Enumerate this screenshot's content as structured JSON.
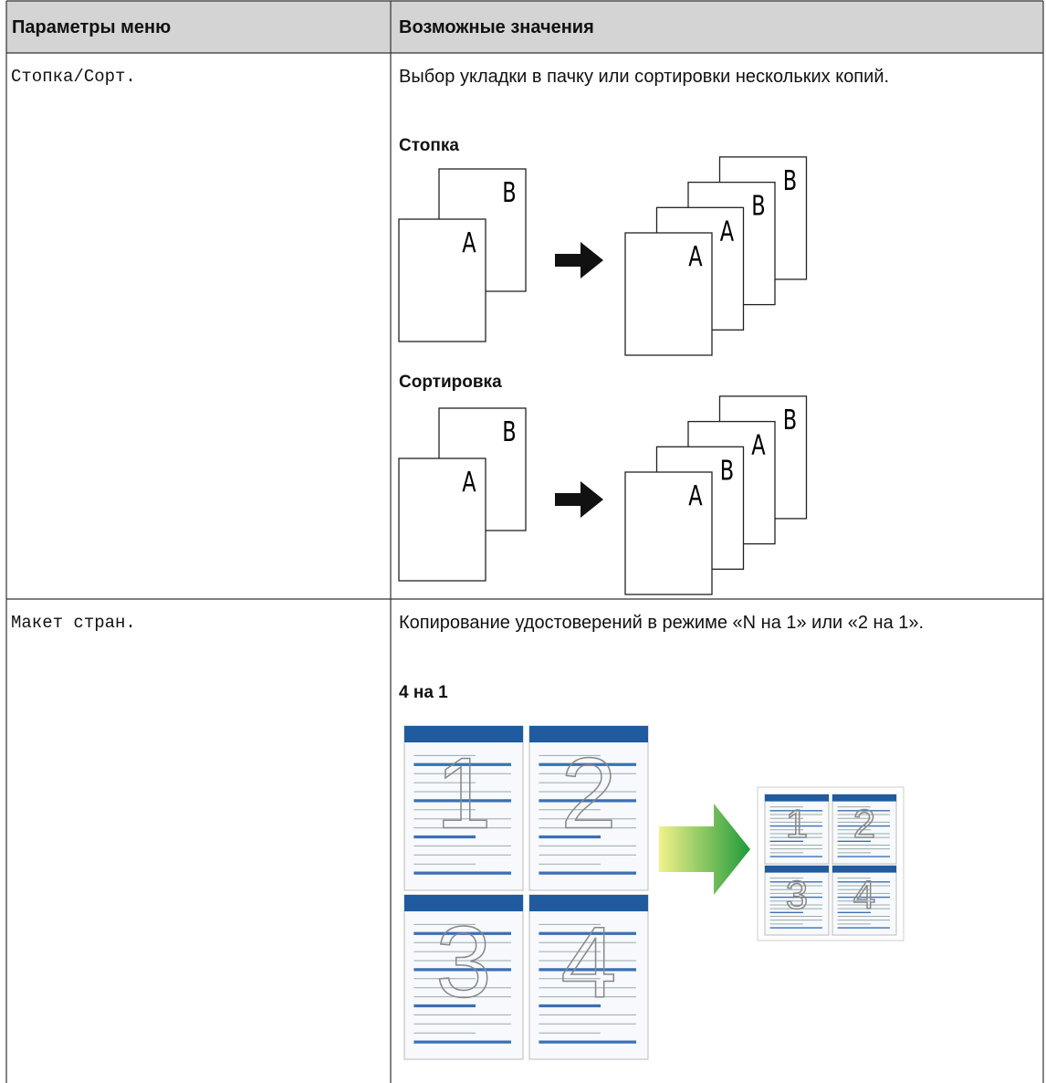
{
  "table": {
    "header": [
      "Параметры меню",
      "Возможные значения"
    ],
    "rows": [
      {
        "option": "Стопка/Сорт.",
        "description": "Выбор укладки в пачку или сортировки нескольких копий.",
        "figures": [
          {
            "title": "Стопка",
            "source": [
              "A",
              "B"
            ],
            "result": [
              "A",
              "A",
              "B",
              "B"
            ]
          },
          {
            "title": "Сортировка",
            "source": [
              "A",
              "B"
            ],
            "result": [
              "A",
              "B",
              "A",
              "B"
            ]
          }
        ]
      },
      {
        "option": "Макет стран.",
        "description": "Копирование удостоверений в режиме «N на 1» или «2 на 1».",
        "figures": [
          {
            "title": "4 на 1",
            "pages": [
              "1",
              "2",
              "3",
              "4"
            ]
          }
        ]
      }
    ]
  }
}
